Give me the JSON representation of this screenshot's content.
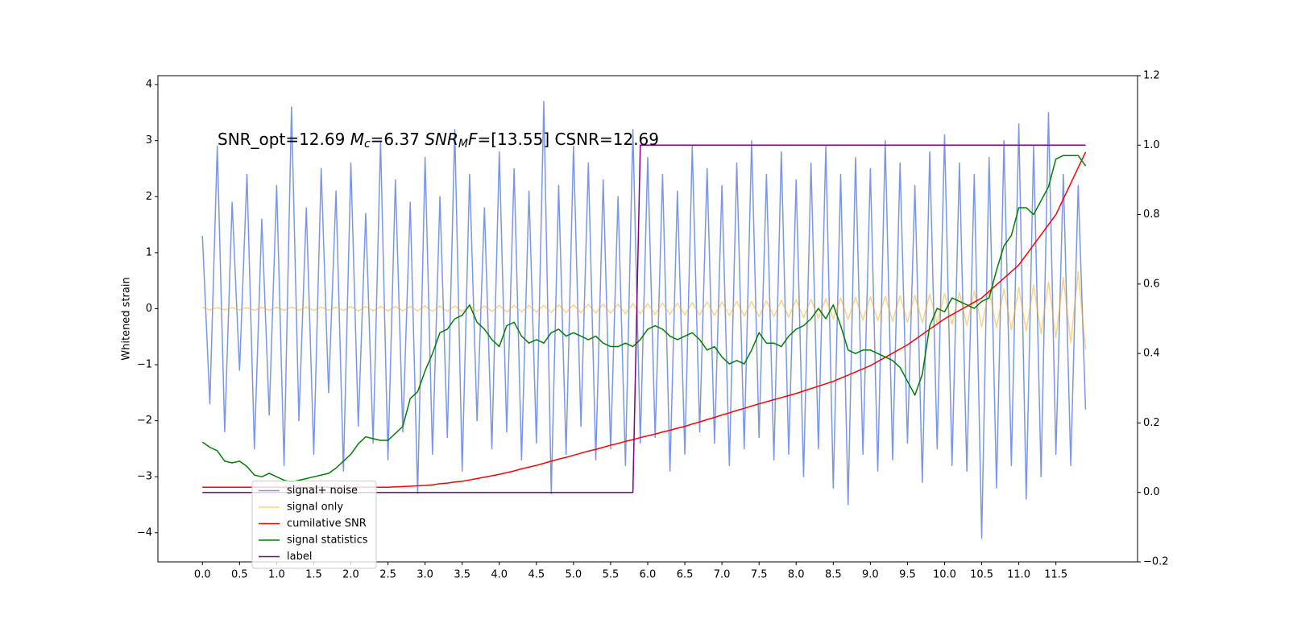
{
  "chart_data": {
    "type": "line",
    "annotation": [
      {
        "text": "SNR_opt=12.69 "
      },
      {
        "text": "M",
        "italic": true
      },
      {
        "text": "c",
        "sub": true
      },
      {
        "text": "=6.37    "
      },
      {
        "text": "SNR",
        "italic": true
      },
      {
        "text": "M",
        "sub": true
      },
      {
        "text": "F",
        "italic": true
      },
      {
        "text": "=[13.55] CSNR=12.69"
      }
    ],
    "ylabel": "Whitened strain",
    "xlim": [
      -0.6,
      12.6
    ],
    "ylim": [
      -4.52,
      4.16
    ],
    "y2lim": [
      -0.2,
      1.2
    ],
    "xticks": [
      {
        "value": 0,
        "label": "0.0"
      },
      0.5,
      {
        "value": 1,
        "label": "1.0"
      },
      1.5,
      {
        "value": 2,
        "label": "2.0"
      },
      2.5,
      {
        "value": 3,
        "label": "3.0"
      },
      3.5,
      {
        "value": 4,
        "label": "4.0"
      },
      4.5,
      {
        "value": 5,
        "label": "5.0"
      },
      5.5,
      {
        "value": 6,
        "label": "6.0"
      },
      6.5,
      {
        "value": 7,
        "label": "7.0"
      },
      7.5,
      {
        "value": 8,
        "label": "8.0"
      },
      8.5,
      {
        "value": 9,
        "label": "9.0"
      },
      9.5,
      {
        "value": 10,
        "label": "10.0"
      },
      10.5,
      {
        "value": 11,
        "label": "11.0"
      },
      11.5
    ],
    "yticks": [
      {
        "value": -4,
        "label": "−4"
      },
      {
        "value": -3,
        "label": "−3"
      },
      {
        "value": -2,
        "label": "−2"
      },
      {
        "value": -1,
        "label": "−1"
      },
      0,
      1,
      2,
      3,
      4
    ],
    "y2ticks": [
      {
        "value": -0.2,
        "label": "−0.2"
      },
      {
        "value": 0,
        "label": "0.0"
      },
      0.2,
      0.4,
      0.6,
      0.8,
      {
        "value": 1,
        "label": "1.0"
      },
      1.2
    ],
    "legend": "lower left",
    "grid": false,
    "x": [
      0,
      0.1,
      0.2,
      0.3,
      0.4,
      0.5,
      0.6,
      0.7,
      0.8,
      0.9,
      1,
      1.1,
      1.2,
      1.3,
      1.4,
      1.5,
      1.6,
      1.7,
      1.8,
      1.9,
      2,
      2.1,
      2.2,
      2.3,
      2.4,
      2.5,
      2.6,
      2.7,
      2.8,
      2.9,
      3,
      3.1,
      3.2,
      3.3,
      3.4,
      3.5,
      3.6,
      3.7,
      3.8,
      3.9,
      4,
      4.1,
      4.2,
      4.3,
      4.4,
      4.5,
      4.6,
      4.7,
      4.8,
      4.9,
      5,
      5.1,
      5.2,
      5.3,
      5.4,
      5.5,
      5.6,
      5.7,
      5.8,
      5.9,
      6,
      6.1,
      6.2,
      6.3,
      6.4,
      6.5,
      6.6,
      6.7,
      6.8,
      6.9,
      7,
      7.1,
      7.2,
      7.3,
      7.4,
      7.5,
      7.6,
      7.7,
      7.8,
      7.9,
      8,
      8.1,
      8.2,
      8.3,
      8.4,
      8.5,
      8.6,
      8.7,
      8.8,
      8.9,
      9,
      9.1,
      9.2,
      9.3,
      9.4,
      9.5,
      9.6,
      9.7,
      9.8,
      9.9,
      10,
      10.1,
      10.2,
      10.3,
      10.4,
      10.5,
      10.6,
      10.7,
      10.8,
      10.9,
      11,
      11.1,
      11.2,
      11.3,
      11.4,
      11.5,
      11.6,
      11.7,
      11.8,
      11.9
    ],
    "series": [
      {
        "name": "signal+ noise",
        "color": "#4169e1",
        "alpha": 0.7,
        "axis": "y",
        "values": [
          1.3,
          -1.7,
          2.9,
          -2.2,
          1.9,
          -1.1,
          2.4,
          -2.5,
          1.6,
          -1.9,
          2.2,
          -2.8,
          3.6,
          -2.0,
          1.8,
          -2.6,
          2.5,
          -1.5,
          2.1,
          -2.9,
          2.6,
          -2.1,
          1.7,
          -2.4,
          3.0,
          -2.7,
          2.3,
          -2.2,
          1.9,
          -3.3,
          2.7,
          -2.6,
          2.0,
          -2.3,
          3.2,
          -2.9,
          2.4,
          -2.0,
          1.8,
          -2.5,
          2.8,
          -2.2,
          2.5,
          -2.7,
          2.1,
          -2.4,
          3.7,
          -3.3,
          2.2,
          -2.6,
          2.9,
          -2.1,
          2.6,
          -2.7,
          2.3,
          -2.5,
          2.0,
          -2.8,
          3.2,
          -2.4,
          2.7,
          -2.3,
          2.4,
          -2.9,
          2.1,
          -2.6,
          2.9,
          -2.2,
          2.5,
          -2.4,
          2.2,
          -2.8,
          2.6,
          -2.5,
          3.0,
          -2.3,
          2.4,
          -2.7,
          2.8,
          -2.6,
          2.3,
          -3.0,
          2.6,
          -2.5,
          2.9,
          -3.2,
          2.4,
          -3.5,
          2.7,
          -2.6,
          2.5,
          -2.9,
          3.0,
          -2.7,
          2.6,
          -2.4,
          2.2,
          -3.1,
          2.8,
          -2.5,
          3.1,
          -2.8,
          2.6,
          -2.9,
          2.4,
          -4.1,
          2.7,
          -3.2,
          3.0,
          -2.8,
          3.3,
          -3.4,
          2.9,
          -3.0,
          3.5,
          -2.6,
          2.4,
          -2.8,
          2.2,
          -1.8
        ]
      },
      {
        "name": "signal only",
        "color": "#ffa500",
        "alpha": 0.5,
        "axis": "y",
        "values": [
          0.02,
          -0.02,
          0.02,
          -0.02,
          0.02,
          -0.02,
          0.02,
          -0.03,
          0.03,
          -0.03,
          0.03,
          -0.03,
          0.03,
          -0.03,
          0.03,
          -0.03,
          0.03,
          -0.03,
          0.03,
          -0.03,
          0.04,
          -0.04,
          0.04,
          -0.04,
          0.04,
          -0.04,
          0.04,
          -0.04,
          0.04,
          -0.04,
          0.05,
          -0.05,
          0.05,
          -0.05,
          0.05,
          -0.05,
          0.05,
          -0.05,
          0.05,
          -0.05,
          0.06,
          -0.06,
          0.06,
          -0.06,
          0.06,
          -0.06,
          0.06,
          -0.07,
          0.07,
          -0.07,
          0.07,
          -0.07,
          0.08,
          -0.08,
          0.08,
          -0.08,
          0.08,
          -0.09,
          0.09,
          -0.09,
          0.09,
          -0.1,
          0.1,
          -0.1,
          0.1,
          -0.11,
          0.11,
          -0.11,
          0.12,
          -0.12,
          0.12,
          -0.12,
          0.13,
          -0.13,
          0.13,
          -0.14,
          0.14,
          -0.14,
          0.15,
          -0.15,
          0.16,
          -0.16,
          0.17,
          -0.17,
          0.18,
          -0.18,
          0.19,
          -0.19,
          0.2,
          -0.2,
          0.21,
          -0.21,
          0.22,
          -0.22,
          0.23,
          -0.24,
          0.24,
          -0.25,
          0.26,
          -0.26,
          0.27,
          -0.28,
          0.29,
          -0.3,
          0.31,
          -0.32,
          0.33,
          -0.34,
          0.35,
          -0.37,
          0.38,
          -0.4,
          0.42,
          -0.45,
          0.48,
          -0.52,
          0.56,
          -0.61,
          0.66,
          -0.72
        ]
      },
      {
        "name": "cumilative SNR",
        "color": "#ff0000",
        "alpha": 1,
        "axis": "y2",
        "values": [
          0.015,
          0.015,
          0.015,
          0.015,
          0.015,
          0.015,
          0.015,
          0.015,
          0.015,
          0.015,
          0.015,
          0.015,
          0.015,
          0.015,
          0.015,
          0.015,
          0.015,
          0.015,
          0.015,
          0.015,
          0.015,
          0.015,
          0.015,
          0.015,
          0.015,
          0.015,
          0.016,
          0.017,
          0.018,
          0.019,
          0.02,
          0.022,
          0.025,
          0.027,
          0.03,
          0.032,
          0.036,
          0.04,
          0.044,
          0.048,
          0.052,
          0.057,
          0.062,
          0.068,
          0.073,
          0.078,
          0.084,
          0.09,
          0.096,
          0.101,
          0.107,
          0.113,
          0.119,
          0.124,
          0.13,
          0.136,
          0.141,
          0.147,
          0.152,
          0.158,
          0.163,
          0.168,
          0.174,
          0.179,
          0.185,
          0.19,
          0.197,
          0.203,
          0.21,
          0.216,
          0.223,
          0.229,
          0.236,
          0.242,
          0.249,
          0.255,
          0.261,
          0.267,
          0.273,
          0.279,
          0.285,
          0.292,
          0.299,
          0.306,
          0.313,
          0.32,
          0.329,
          0.338,
          0.347,
          0.356,
          0.365,
          0.377,
          0.389,
          0.401,
          0.413,
          0.425,
          0.44,
          0.455,
          0.47,
          0.485,
          0.5,
          0.512,
          0.524,
          0.536,
          0.548,
          0.56,
          0.579,
          0.598,
          0.617,
          0.636,
          0.655,
          0.684,
          0.713,
          0.742,
          0.771,
          0.8,
          0.845,
          0.89,
          0.935,
          0.98
        ]
      },
      {
        "name": "signal statistics",
        "color": "#008000",
        "alpha": 1,
        "axis": "y2",
        "values": [
          0.145,
          0.13,
          0.12,
          0.09,
          0.085,
          0.09,
          0.075,
          0.05,
          0.045,
          0.055,
          0.045,
          0.035,
          0.03,
          0.035,
          0.04,
          0.045,
          0.05,
          0.055,
          0.07,
          0.09,
          0.11,
          0.14,
          0.16,
          0.155,
          0.15,
          0.15,
          0.17,
          0.19,
          0.27,
          0.29,
          0.35,
          0.4,
          0.46,
          0.47,
          0.5,
          0.51,
          0.54,
          0.49,
          0.47,
          0.44,
          0.42,
          0.48,
          0.49,
          0.45,
          0.43,
          0.44,
          0.43,
          0.46,
          0.47,
          0.45,
          0.46,
          0.45,
          0.44,
          0.45,
          0.43,
          0.42,
          0.42,
          0.43,
          0.42,
          0.44,
          0.47,
          0.48,
          0.47,
          0.45,
          0.44,
          0.45,
          0.46,
          0.44,
          0.41,
          0.42,
          0.39,
          0.37,
          0.38,
          0.37,
          0.41,
          0.46,
          0.43,
          0.43,
          0.42,
          0.45,
          0.47,
          0.48,
          0.5,
          0.53,
          0.5,
          0.54,
          0.48,
          0.41,
          0.4,
          0.41,
          0.41,
          0.4,
          0.39,
          0.38,
          0.36,
          0.32,
          0.28,
          0.34,
          0.48,
          0.53,
          0.52,
          0.56,
          0.55,
          0.54,
          0.53,
          0.55,
          0.56,
          0.64,
          0.71,
          0.74,
          0.82,
          0.82,
          0.8,
          0.84,
          0.88,
          0.96,
          0.97,
          0.97,
          0.97,
          0.94
        ]
      },
      {
        "name": "label",
        "color": "#800080",
        "alpha": 1,
        "axis": "y2",
        "values": [
          0,
          0,
          0,
          0,
          0,
          0,
          0,
          0,
          0,
          0,
          0,
          0,
          0,
          0,
          0,
          0,
          0,
          0,
          0,
          0,
          0,
          0,
          0,
          0,
          0,
          0,
          0,
          0,
          0,
          0,
          0,
          0,
          0,
          0,
          0,
          0,
          0,
          0,
          0,
          0,
          0,
          0,
          0,
          0,
          0,
          0,
          0,
          0,
          0,
          0,
          0,
          0,
          0,
          0,
          0,
          0,
          0,
          0,
          0,
          1,
          1,
          1,
          1,
          1,
          1,
          1,
          1,
          1,
          1,
          1,
          1,
          1,
          1,
          1,
          1,
          1,
          1,
          1,
          1,
          1,
          1,
          1,
          1,
          1,
          1,
          1,
          1,
          1,
          1,
          1,
          1,
          1,
          1,
          1,
          1,
          1,
          1,
          1,
          1,
          1,
          1,
          1,
          1,
          1,
          1,
          1,
          1,
          1,
          1,
          1,
          1,
          1,
          1,
          1,
          1,
          1,
          1,
          1,
          1,
          1
        ]
      }
    ]
  }
}
